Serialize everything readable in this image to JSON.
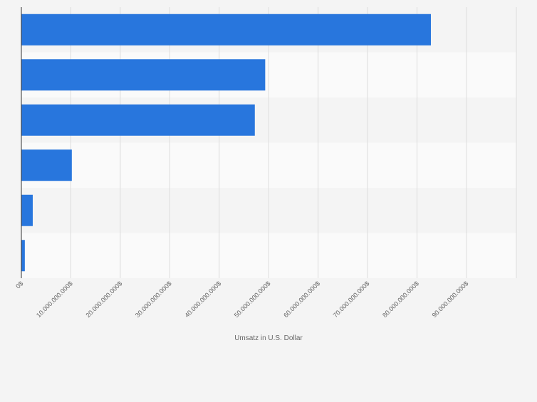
{
  "chart_data": {
    "type": "bar",
    "orientation": "horizontal",
    "categories": [
      "",
      "",
      "",
      "",
      "",
      ""
    ],
    "values": [
      82800000000,
      49300000000,
      47200000000,
      10200000000,
      2300000000,
      700000000
    ],
    "xlabel": "Umsatz in U.S. Dollar",
    "ylabel": "",
    "xlim": [
      0,
      100000000000
    ],
    "x_ticks": [
      0,
      10000000000,
      20000000000,
      30000000000,
      40000000000,
      50000000000,
      60000000000,
      70000000000,
      80000000000,
      90000000000
    ],
    "x_tick_labels": [
      "0$",
      "10.000.000.000$",
      "20.000.000.000$",
      "30.000.000.000$",
      "40.000.000.000$",
      "50.000.000.000$",
      "60.000.000.000$",
      "70.000.000.000$",
      "80.000.000.000$",
      "90.000.000.000$"
    ],
    "grid": true,
    "legend": "none",
    "colors": {
      "bar": "#2876dd",
      "band_light": "#fafafa",
      "band_dark": "#f4f4f4",
      "grid": "#dddddd",
      "axis": "#333333",
      "tick_text": "#666666"
    }
  }
}
